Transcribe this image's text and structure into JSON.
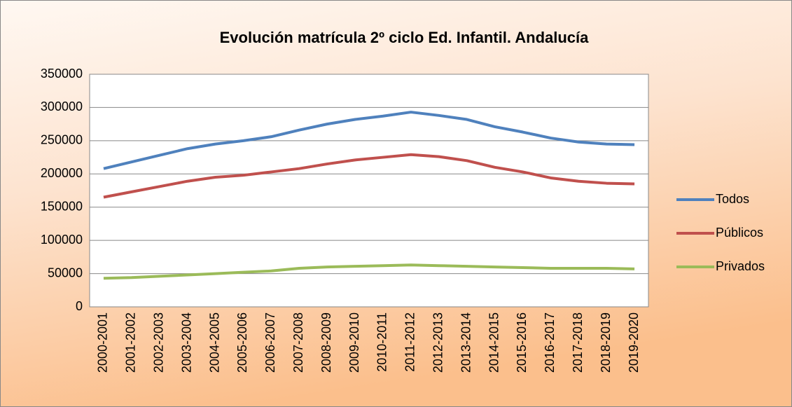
{
  "chart_data": {
    "type": "line",
    "title": "Evolución matrícula 2º ciclo Ed. Infantil. Andalucía",
    "categories": [
      "2000-2001",
      "2001-2002",
      "2002-2003",
      "2003-2004",
      "2004-2005",
      "2005-2006",
      "2006-2007",
      "2007-2008",
      "2008-2009",
      "2009-2010",
      "2010-2011",
      "2011-2012",
      "2012-2013",
      "2013-2014",
      "2014-2015",
      "2015-2016",
      "2016-2017",
      "2017-2018",
      "2018-2019",
      "2019-2020"
    ],
    "series": [
      {
        "name": "Todos",
        "color": "#4f81bd",
        "values": [
          208000,
          218000,
          228000,
          238000,
          245000,
          250000,
          256000,
          266000,
          275000,
          282000,
          287000,
          293000,
          288000,
          282000,
          271000,
          263000,
          254000,
          248000,
          245000,
          244000
        ]
      },
      {
        "name": "Públicos",
        "color": "#c0504d",
        "values": [
          165000,
          173000,
          181000,
          189000,
          195000,
          198000,
          203000,
          208000,
          215000,
          221000,
          225000,
          229000,
          226000,
          220000,
          210000,
          203000,
          194000,
          189000,
          186000,
          185000
        ]
      },
      {
        "name": "Privados",
        "color": "#9bbb59",
        "values": [
          43000,
          44000,
          46000,
          48000,
          50000,
          52000,
          54000,
          58000,
          60000,
          61000,
          62000,
          63000,
          62000,
          61000,
          60000,
          59000,
          58000,
          58000,
          58000,
          57000
        ]
      }
    ],
    "ylim": [
      0,
      350000
    ],
    "yticks": [
      0,
      50000,
      100000,
      150000,
      200000,
      250000,
      300000,
      350000
    ],
    "grid": true,
    "legend": "right"
  }
}
